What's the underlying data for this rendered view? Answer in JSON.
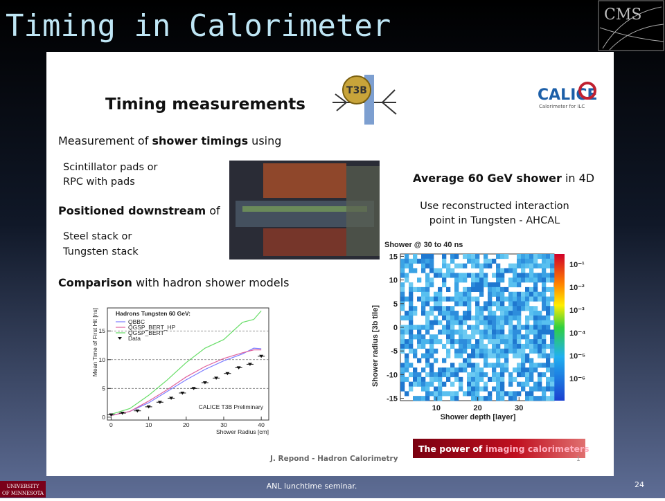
{
  "header": {
    "title": "Timing in Calorimeter",
    "logo": "CMS"
  },
  "slide": {
    "heading": "Timing measurements",
    "t3b_logo": "T3B",
    "calice_logo": "CALICE",
    "calice_sub": "Calorimeter for ILC",
    "measurement": {
      "pre": "Measurement of ",
      "bold": "shower timings",
      "post": " using"
    },
    "pads": [
      "Scintillator pads or",
      "RPC with pads"
    ],
    "positioned": {
      "bold": "Positioned downstream",
      "post": " of"
    },
    "stacks": [
      "Steel stack or",
      "Tungsten stack"
    ],
    "comparison": {
      "bold": "Comparison",
      "post": " with hadron shower models"
    },
    "average": {
      "bold": "Average 60 GeV shower",
      "post": " in 4D"
    },
    "reco": [
      "Use reconstructed interaction",
      "point in Tungsten - AHCAL"
    ],
    "credit": "J. Repond - Hadron Calorimetry",
    "page_small": "1",
    "banner": {
      "pre": "The power of ",
      "highlight": "imaging calorimeters"
    }
  },
  "timing_plot": {
    "title": "Hadrons Tungsten 60 GeV:",
    "y_label": "Mean Time of First Hit [ns]",
    "x_label": "Shower Radius [cm]",
    "watermark": "CALICE T3B Preliminary",
    "xlim": [
      -1,
      42
    ],
    "ylim": [
      -0.5,
      19
    ],
    "xticks": [
      0,
      10,
      20,
      30,
      40
    ],
    "yticks": [
      0,
      5,
      10,
      15
    ],
    "series": [
      {
        "name": "QBBC",
        "color": "#7b7bff",
        "x": [
          0,
          5,
          10,
          15,
          20,
          25,
          30,
          35,
          38,
          40
        ],
        "values": [
          0.3,
          1,
          2.5,
          4.5,
          6.5,
          8.3,
          9.8,
          11,
          12,
          11.9
        ]
      },
      {
        "name": "QGSP_BERT_HP",
        "color": "#e0609c",
        "x": [
          0,
          5,
          10,
          15,
          20,
          25,
          30,
          35,
          38,
          40
        ],
        "values": [
          0.3,
          1,
          2.8,
          4.8,
          7,
          8.8,
          10.2,
          11.2,
          11.7,
          11.7
        ]
      },
      {
        "name": "QGSP_BERT",
        "color": "#66dd66",
        "x": [
          0,
          5,
          10,
          15,
          20,
          25,
          30,
          35,
          38,
          40
        ],
        "values": [
          0.5,
          1.5,
          3.8,
          6.5,
          9.5,
          12,
          13.5,
          16.5,
          17,
          18.5
        ]
      },
      {
        "name": "Data",
        "color": "#111111",
        "x": [
          0,
          3,
          7,
          10,
          13,
          16,
          19,
          22,
          25,
          28,
          31,
          34,
          37,
          40
        ],
        "values": [
          0.4,
          0.7,
          1.1,
          1.8,
          2.6,
          3.3,
          4.2,
          5.0,
          6.0,
          6.8,
          7.6,
          8.6,
          9.2,
          10.6
        ]
      }
    ]
  },
  "shower_map": {
    "title": "Shower @ 30 to 40 ns",
    "y_label": "Shower radius [3b tile]",
    "x_label": "Shower depth [layer]",
    "xlim": [
      1.3,
      38.5
    ],
    "ylim": [
      -15.5,
      15.5
    ],
    "xticks": [
      10,
      20,
      30
    ],
    "yticks": [
      15,
      10,
      5,
      0,
      -5,
      -10,
      -15
    ],
    "scale_labels": [
      "10⁻¹",
      "10⁻²",
      "10⁻³",
      "10⁻⁴",
      "10⁻⁵",
      "10⁻⁶"
    ]
  },
  "footer": {
    "text": "ANL lunchtime seminar.",
    "page": "24",
    "university": [
      "UNIVERSITY",
      "OF MINNESOTA"
    ]
  }
}
